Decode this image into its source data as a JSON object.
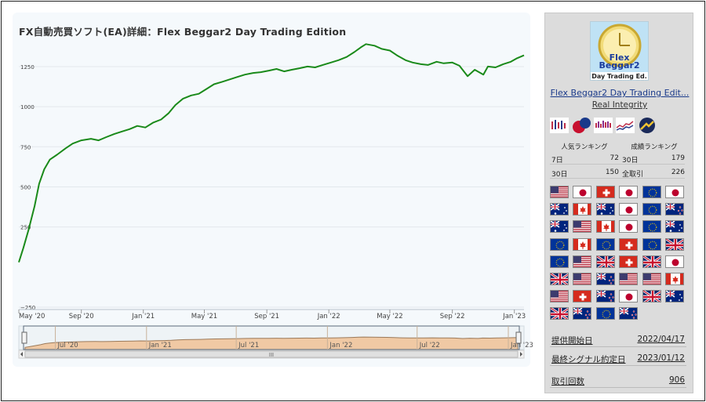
{
  "page": {
    "title": "FX自動売買ソフト(EA)詳細：Flex Beggar2 Day Trading Edition"
  },
  "chart_data": {
    "type": "line",
    "ylim": [
      -250,
      1450
    ],
    "yticks": [
      "1250",
      "1000",
      "750",
      "500",
      "250",
      "−250"
    ],
    "ytick_values": [
      1250,
      1000,
      750,
      500,
      250,
      -250
    ],
    "xlim": [
      "2020-05-01",
      "2023-01-20"
    ],
    "xticks": [
      "May '20",
      "Sep '20",
      "Jan '21",
      "May '21",
      "Sep '21",
      "Jan '22",
      "May '22",
      "Sep '22",
      "Jan '23"
    ],
    "xtick_dates": [
      "2020-05-01",
      "2020-09-01",
      "2021-01-01",
      "2021-05-01",
      "2021-09-01",
      "2022-01-01",
      "2022-05-01",
      "2022-09-01",
      "2023-01-01"
    ],
    "series": [
      {
        "color": "#1a8a1a",
        "points": [
          [
            "2020-05-01",
            30
          ],
          [
            "2020-05-10",
            120
          ],
          [
            "2020-05-20",
            230
          ],
          [
            "2020-06-01",
            380
          ],
          [
            "2020-06-10",
            520
          ],
          [
            "2020-06-20",
            610
          ],
          [
            "2020-07-01",
            670
          ],
          [
            "2020-07-15",
            700
          ],
          [
            "2020-08-01",
            740
          ],
          [
            "2020-08-15",
            770
          ],
          [
            "2020-09-01",
            790
          ],
          [
            "2020-09-20",
            800
          ],
          [
            "2020-10-05",
            790
          ],
          [
            "2020-10-20",
            810
          ],
          [
            "2020-11-05",
            830
          ],
          [
            "2020-11-20",
            845
          ],
          [
            "2020-12-05",
            860
          ],
          [
            "2020-12-20",
            880
          ],
          [
            "2021-01-05",
            870
          ],
          [
            "2021-01-20",
            900
          ],
          [
            "2021-02-05",
            920
          ],
          [
            "2021-02-20",
            960
          ],
          [
            "2021-03-05",
            1010
          ],
          [
            "2021-03-20",
            1050
          ],
          [
            "2021-04-05",
            1070
          ],
          [
            "2021-04-20",
            1080
          ],
          [
            "2021-05-05",
            1110
          ],
          [
            "2021-05-20",
            1140
          ],
          [
            "2021-06-05",
            1155
          ],
          [
            "2021-06-20",
            1170
          ],
          [
            "2021-07-05",
            1185
          ],
          [
            "2021-07-20",
            1200
          ],
          [
            "2021-08-05",
            1210
          ],
          [
            "2021-08-20",
            1215
          ],
          [
            "2021-09-05",
            1225
          ],
          [
            "2021-09-20",
            1235
          ],
          [
            "2021-10-05",
            1220
          ],
          [
            "2021-10-20",
            1230
          ],
          [
            "2021-11-05",
            1240
          ],
          [
            "2021-11-20",
            1250
          ],
          [
            "2021-12-05",
            1245
          ],
          [
            "2021-12-20",
            1260
          ],
          [
            "2022-01-05",
            1275
          ],
          [
            "2022-01-20",
            1290
          ],
          [
            "2022-02-05",
            1310
          ],
          [
            "2022-02-20",
            1340
          ],
          [
            "2022-03-05",
            1370
          ],
          [
            "2022-03-15",
            1390
          ],
          [
            "2022-04-01",
            1380
          ],
          [
            "2022-04-15",
            1360
          ],
          [
            "2022-05-01",
            1350
          ],
          [
            "2022-05-15",
            1320
          ],
          [
            "2022-06-01",
            1290
          ],
          [
            "2022-06-15",
            1275
          ],
          [
            "2022-07-01",
            1265
          ],
          [
            "2022-07-15",
            1260
          ],
          [
            "2022-08-01",
            1280
          ],
          [
            "2022-08-15",
            1270
          ],
          [
            "2022-09-01",
            1275
          ],
          [
            "2022-09-15",
            1255
          ],
          [
            "2022-10-01",
            1190
          ],
          [
            "2022-10-15",
            1230
          ],
          [
            "2022-11-01",
            1200
          ],
          [
            "2022-11-10",
            1250
          ],
          [
            "2022-11-25",
            1245
          ],
          [
            "2022-12-10",
            1265
          ],
          [
            "2022-12-25",
            1280
          ],
          [
            "2023-01-05",
            1300
          ],
          [
            "2023-01-20",
            1320
          ]
        ]
      }
    ],
    "navigator": {
      "xticks": [
        "Jul '20",
        "Jan '21",
        "Jul '21",
        "Jan '22",
        "Jul '22",
        "Jan '23"
      ],
      "xtick_dates": [
        "2020-07-01",
        "2021-01-01",
        "2021-07-01",
        "2022-01-01",
        "2022-07-01",
        "2023-01-01"
      ],
      "scrollbar_glyph": "III"
    }
  },
  "sidebar": {
    "logo": {
      "line1": "Flex",
      "line2": "Beggar2",
      "line3": "Day Trading Ed.",
      "bg": "#bfe2f5"
    },
    "ea_name": "Flex Beggar2 Day Trading Edit...",
    "author": "Real Integrity",
    "badges": [
      "candlestick-icon",
      "chat-bubbles-icon",
      "bar-chart-icon",
      "line-chart-icon",
      "trend-up-icon"
    ],
    "ranking": {
      "popular_label": "人気ランキング",
      "performance_label": "成績ランキング",
      "rows": [
        {
          "left_label": "7日",
          "left_value": "72",
          "right_label": "30日",
          "right_value": "179"
        },
        {
          "left_label": "30日",
          "left_value": "150",
          "right_label": "全取引",
          "right_value": "226"
        }
      ]
    },
    "currency_pairs": [
      [
        "USD",
        "JPY"
      ],
      [
        "CHF",
        "JPY"
      ],
      [
        "EUR",
        "JPY"
      ],
      [
        "AUD",
        "CAD"
      ],
      [
        "AUD",
        "JPY"
      ],
      [
        "EUR",
        "NZD"
      ],
      [
        "AUD",
        "USD"
      ],
      [
        "CAD",
        "JPY"
      ],
      [
        "EUR",
        "AUD"
      ],
      [
        "EUR",
        "CAD"
      ],
      [
        "EUR",
        "CHF"
      ],
      [
        "EUR",
        "GBP"
      ],
      [
        "EUR",
        "USD"
      ],
      [
        "GBP",
        "CHF"
      ],
      [
        "GBP",
        "JPY"
      ],
      [
        "GBP",
        "USD"
      ],
      [
        "NZD",
        "USD"
      ],
      [
        "USD",
        "CAD"
      ],
      [
        "USD",
        "CHF"
      ],
      [
        "NZD",
        "JPY"
      ],
      [
        "GBP",
        "AUD"
      ],
      [
        "GBP",
        "NZD"
      ],
      [
        "EUR",
        "NZD"
      ]
    ],
    "info": [
      {
        "label": "提供開始日",
        "value": "2022/04/17"
      },
      {
        "label": "最終シグナル約定日",
        "value": "2023/01/12"
      },
      {
        "label": "取引回数",
        "value": "906"
      }
    ]
  }
}
